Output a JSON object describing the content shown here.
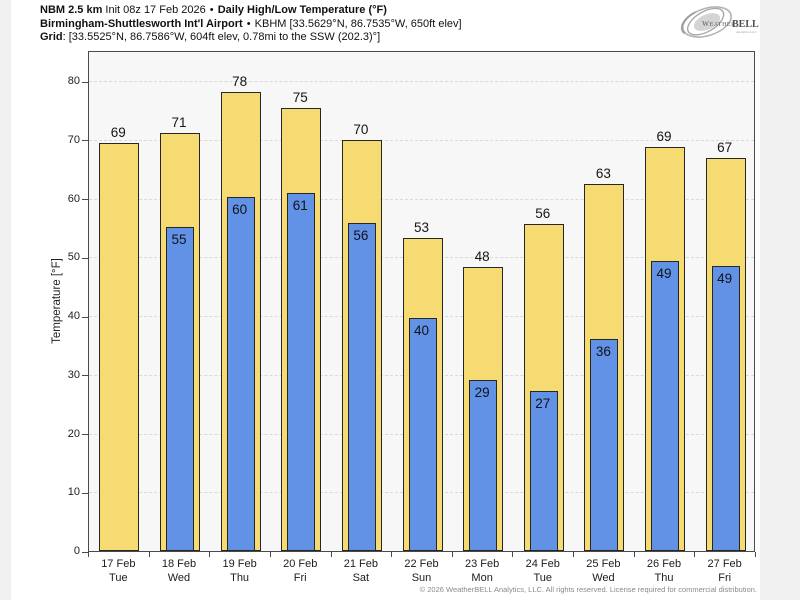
{
  "header": {
    "line1": {
      "model": "NBM 2.5 km",
      "init": "Init 08z 17 Feb 2026",
      "sep": "•",
      "product": "Daily High/Low Temperature (°F)"
    },
    "line2": {
      "station": "Birmingham-Shuttlesworth Int'l Airport",
      "sep": "•",
      "station_detail": "KBHM [33.5629°N, 86.7535°W, 650ft elev]"
    },
    "line3": {
      "label": "Grid",
      "detail": ": [33.5525°N, 86.7586°W, 604ft elev, 0.78mi to the SSW (202.3)°]"
    }
  },
  "logo": {
    "text_weather": "Weather",
    "text_bell": "BELL",
    "tagline": "Analytics LLC"
  },
  "footer": {
    "copyright": "© 2026 WeatherBELL Analytics, LLC. All rights reserved. License required for commercial distribution."
  },
  "chart_data": {
    "type": "bar",
    "title": "Daily High/Low Temperature (°F)",
    "ylabel": "Temperature [°F]",
    "ylim": [
      0,
      85.3
    ],
    "yticks": [
      0,
      10,
      20,
      30,
      40,
      50,
      60,
      70,
      80
    ],
    "grid": "horizontal-dashed",
    "legend": "none",
    "categories": [
      {
        "date": "17 Feb",
        "dow": "Tue"
      },
      {
        "date": "18 Feb",
        "dow": "Wed"
      },
      {
        "date": "19 Feb",
        "dow": "Thu"
      },
      {
        "date": "20 Feb",
        "dow": "Fri"
      },
      {
        "date": "21 Feb",
        "dow": "Sat"
      },
      {
        "date": "22 Feb",
        "dow": "Sun"
      },
      {
        "date": "23 Feb",
        "dow": "Mon"
      },
      {
        "date": "24 Feb",
        "dow": "Tue"
      },
      {
        "date": "25 Feb",
        "dow": "Wed"
      },
      {
        "date": "26 Feb",
        "dow": "Thu"
      },
      {
        "date": "27 Feb",
        "dow": "Fri"
      }
    ],
    "series": [
      {
        "name": "High",
        "labels": [
          69,
          71,
          78,
          75,
          70,
          53,
          48,
          56,
          63,
          69,
          67
        ],
        "bar_values": [
          69.5,
          71.1,
          78.1,
          75.5,
          69.9,
          53.3,
          48.3,
          55.7,
          62.5,
          68.8,
          66.9
        ],
        "color": "#F6DB72"
      },
      {
        "name": "Low",
        "labels": [
          null,
          55,
          60,
          61,
          56,
          40,
          29,
          27,
          36,
          49,
          49
        ],
        "bar_values": [
          null,
          55.1,
          60.2,
          60.9,
          55.8,
          39.7,
          29.1,
          27.2,
          36.1,
          49.4,
          48.6
        ],
        "color": "#6292E6"
      }
    ]
  },
  "colors": {
    "bar_high": "#F6DB72",
    "bar_low": "#6292E6",
    "bar_border": "#262626",
    "plot_bg": "#F7F7F7",
    "gridline": "#D9D9D9",
    "axis": "#4A4A4A",
    "margin_bg": "#F1F1F1",
    "text": "#161616",
    "footer_text": "#8A8A8A"
  }
}
